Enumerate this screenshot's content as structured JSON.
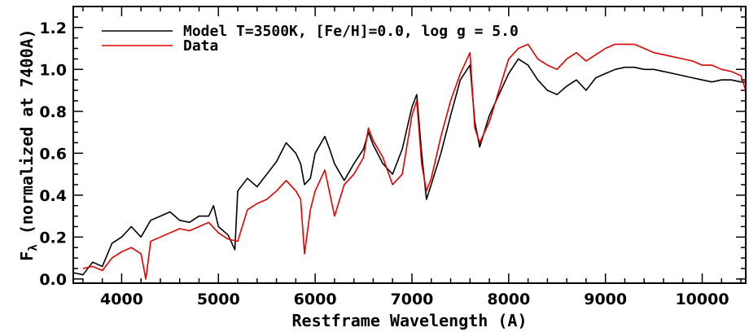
{
  "chart_data": {
    "type": "line",
    "xlabel": "Restframe Wavelength (A)",
    "ylabel_prefix": "F",
    "ylabel_sub": "λ",
    "ylabel_rest": " (normalized at  7400A)",
    "xlim": [
      3500,
      10450
    ],
    "ylim": [
      -0.02,
      1.3
    ],
    "xticks": [
      4000,
      5000,
      6000,
      7000,
      8000,
      9000,
      10000
    ],
    "yticks": [
      0.0,
      0.2,
      0.4,
      0.6,
      0.8,
      1.0,
      1.2
    ],
    "ytick_labels": [
      "0.0",
      "0.2",
      "0.4",
      "0.6",
      "0.8",
      "1.0",
      "1.2"
    ],
    "legend_position": "top-left",
    "series": [
      {
        "name": "Model T=3500K, [Fe/H]=0.0, log g = 5.0",
        "color": "#000000",
        "x": [
          3500,
          3600,
          3700,
          3800,
          3900,
          4000,
          4100,
          4200,
          4300,
          4400,
          4500,
          4600,
          4700,
          4800,
          4900,
          4950,
          5000,
          5100,
          5170,
          5200,
          5300,
          5400,
          5500,
          5600,
          5700,
          5800,
          5850,
          5890,
          5950,
          6000,
          6100,
          6150,
          6200,
          6300,
          6400,
          6500,
          6550,
          6600,
          6700,
          6800,
          6900,
          7000,
          7050,
          7100,
          7150,
          7200,
          7300,
          7400,
          7500,
          7600,
          7650,
          7700,
          7800,
          7900,
          8000,
          8100,
          8200,
          8300,
          8400,
          8500,
          8600,
          8700,
          8800,
          8900,
          9000,
          9100,
          9200,
          9300,
          9400,
          9500,
          9600,
          9700,
          9800,
          9900,
          10000,
          10100,
          10200,
          10300,
          10400,
          10450
        ],
        "y": [
          0.03,
          0.02,
          0.08,
          0.06,
          0.17,
          0.2,
          0.25,
          0.2,
          0.28,
          0.3,
          0.32,
          0.28,
          0.27,
          0.3,
          0.3,
          0.35,
          0.25,
          0.21,
          0.14,
          0.42,
          0.48,
          0.44,
          0.5,
          0.56,
          0.65,
          0.6,
          0.55,
          0.45,
          0.48,
          0.6,
          0.68,
          0.62,
          0.55,
          0.47,
          0.55,
          0.62,
          0.7,
          0.64,
          0.55,
          0.5,
          0.62,
          0.82,
          0.88,
          0.6,
          0.38,
          0.45,
          0.6,
          0.78,
          0.95,
          1.02,
          0.75,
          0.63,
          0.78,
          0.88,
          0.98,
          1.05,
          1.02,
          0.95,
          0.9,
          0.88,
          0.92,
          0.95,
          0.9,
          0.96,
          0.98,
          1.0,
          1.01,
          1.01,
          1.0,
          1.0,
          0.99,
          0.98,
          0.97,
          0.96,
          0.95,
          0.94,
          0.95,
          0.95,
          0.94,
          0.94
        ]
      },
      {
        "name": "Data",
        "color": "#e00000",
        "x": [
          3600,
          3700,
          3800,
          3900,
          4000,
          4100,
          4200,
          4250,
          4300,
          4400,
          4500,
          4600,
          4700,
          4800,
          4900,
          5000,
          5100,
          5200,
          5300,
          5400,
          5500,
          5600,
          5700,
          5800,
          5850,
          5890,
          5950,
          6000,
          6100,
          6200,
          6300,
          6400,
          6500,
          6550,
          6600,
          6700,
          6800,
          6900,
          7000,
          7050,
          7100,
          7150,
          7200,
          7300,
          7400,
          7500,
          7600,
          7650,
          7700,
          7800,
          7900,
          8000,
          8100,
          8200,
          8300,
          8400,
          8500,
          8600,
          8700,
          8800,
          8900,
          9000,
          9100,
          9200,
          9300,
          9400,
          9500,
          9600,
          9700,
          9800,
          9900,
          10000,
          10100,
          10200,
          10300,
          10400,
          10450
        ],
        "y": [
          0.05,
          0.06,
          0.04,
          0.1,
          0.13,
          0.15,
          0.12,
          0.0,
          0.18,
          0.2,
          0.22,
          0.24,
          0.23,
          0.25,
          0.27,
          0.22,
          0.19,
          0.18,
          0.33,
          0.36,
          0.38,
          0.42,
          0.47,
          0.42,
          0.38,
          0.12,
          0.33,
          0.42,
          0.52,
          0.3,
          0.45,
          0.5,
          0.58,
          0.72,
          0.66,
          0.58,
          0.45,
          0.5,
          0.78,
          0.85,
          0.55,
          0.42,
          0.48,
          0.68,
          0.85,
          0.98,
          1.08,
          0.72,
          0.65,
          0.75,
          0.9,
          1.05,
          1.1,
          1.12,
          1.05,
          1.02,
          1.0,
          1.05,
          1.08,
          1.04,
          1.07,
          1.1,
          1.12,
          1.12,
          1.12,
          1.1,
          1.08,
          1.07,
          1.06,
          1.05,
          1.04,
          1.02,
          1.02,
          1.0,
          0.99,
          0.97,
          0.9
        ]
      }
    ]
  }
}
